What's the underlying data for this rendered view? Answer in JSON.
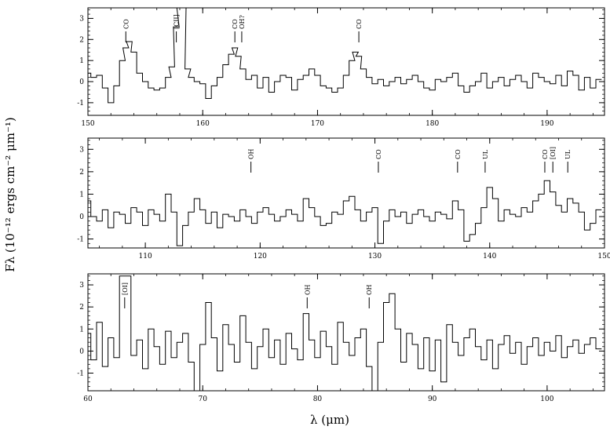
{
  "y_axis_label": "Fλ (10⁻¹² ergs cm⁻² μm⁻¹)",
  "x_axis_label": "λ (μm)",
  "chart_data": [
    {
      "type": "line",
      "step": true,
      "x_range": [
        150,
        195
      ],
      "y_range": [
        -1.6,
        3.5
      ],
      "x_ticks": [
        150,
        160,
        170,
        180,
        190
      ],
      "y_ticks": [
        -1,
        0,
        1,
        2,
        3
      ],
      "lines": [
        {
          "x": 153.3,
          "label": "CO"
        },
        {
          "x": 157.7,
          "label": "[CII]"
        },
        {
          "x": 162.8,
          "label": "CO"
        },
        {
          "x": 163.4,
          "label": "OH?"
        },
        {
          "x": 173.6,
          "label": "CO"
        }
      ],
      "x": [
        150,
        150.5,
        151,
        151.5,
        152,
        152.5,
        153,
        153.3,
        153.6,
        154,
        154.5,
        155,
        155.5,
        156,
        156.5,
        157,
        157.3,
        157.7,
        158,
        158.3,
        158.7,
        159,
        159.5,
        160,
        160.5,
        161,
        161.5,
        162,
        162.5,
        162.8,
        163.1,
        163.5,
        164,
        164.5,
        165,
        165.5,
        166,
        166.5,
        167,
        167.5,
        168,
        168.5,
        169,
        169.5,
        170,
        170.5,
        171,
        171.5,
        172,
        172.5,
        173,
        173.3,
        173.6,
        174,
        174.5,
        175,
        175.5,
        176,
        176.5,
        177,
        177.5,
        178,
        178.5,
        179,
        179.5,
        180,
        180.5,
        181,
        181.5,
        182,
        182.5,
        183,
        183.5,
        184,
        184.5,
        185,
        185.5,
        186,
        186.5,
        187,
        187.5,
        188,
        188.5,
        189,
        189.5,
        190,
        190.5,
        191,
        191.5,
        192,
        192.5,
        193,
        193.5,
        194,
        194.5
      ],
      "values": [
        0.4,
        0.2,
        0.3,
        -0.3,
        -1.0,
        -0.2,
        1.0,
        1.6,
        1.9,
        1.4,
        0.4,
        0.0,
        -0.3,
        -0.4,
        -0.3,
        0.2,
        0.7,
        2.6,
        3.5,
        3.5,
        0.6,
        0.2,
        0.0,
        -0.1,
        -0.8,
        -0.2,
        0.2,
        0.8,
        1.3,
        1.6,
        1.2,
        0.6,
        0.1,
        0.3,
        -0.3,
        0.2,
        -0.5,
        0.0,
        0.3,
        0.2,
        -0.4,
        0.1,
        0.3,
        0.6,
        0.3,
        -0.2,
        -0.3,
        -0.5,
        -0.3,
        0.3,
        1.0,
        1.4,
        1.2,
        0.6,
        0.2,
        -0.1,
        0.1,
        -0.2,
        0.0,
        0.2,
        -0.1,
        0.1,
        0.3,
        0.0,
        -0.3,
        -0.4,
        0.1,
        0.0,
        0.2,
        0.4,
        -0.2,
        -0.5,
        -0.2,
        0.0,
        0.4,
        -0.3,
        0.0,
        0.2,
        -0.2,
        0.1,
        0.3,
        0.0,
        -0.3,
        0.4,
        0.2,
        0.0,
        -0.1,
        0.3,
        -0.2,
        0.5,
        0.3,
        -0.4,
        0.2,
        -0.3,
        0.1
      ]
    },
    {
      "type": "line",
      "step": true,
      "x_range": [
        105,
        150
      ],
      "y_range": [
        -1.4,
        3.5
      ],
      "x_ticks": [
        110,
        120,
        130,
        140,
        150
      ],
      "y_ticks": [
        -1,
        0,
        1,
        2,
        3
      ],
      "lines": [
        {
          "x": 119.2,
          "label": "OH"
        },
        {
          "x": 130.3,
          "label": "CO"
        },
        {
          "x": 137.2,
          "label": "CO"
        },
        {
          "x": 139.6,
          "label": "UL"
        },
        {
          "x": 144.8,
          "label": "CO"
        },
        {
          "x": 145.5,
          "label": "[OI]"
        },
        {
          "x": 146.8,
          "label": "UL"
        }
      ],
      "x": [
        105,
        105.5,
        106,
        106.5,
        107,
        107.5,
        108,
        108.5,
        109,
        109.5,
        110,
        110.5,
        111,
        111.5,
        112,
        112.5,
        113,
        113.5,
        114,
        114.5,
        115,
        115.5,
        116,
        116.5,
        117,
        117.5,
        118,
        118.5,
        119,
        119.5,
        120,
        120.5,
        121,
        121.5,
        122,
        122.5,
        123,
        123.5,
        124,
        124.5,
        125,
        125.5,
        126,
        126.5,
        127,
        127.5,
        128,
        128.5,
        129,
        129.5,
        130,
        130.5,
        131,
        131.5,
        132,
        132.5,
        133,
        133.5,
        134,
        134.5,
        135,
        135.5,
        136,
        136.5,
        137,
        137.5,
        138,
        138.5,
        139,
        139.5,
        140,
        140.5,
        141,
        141.5,
        142,
        142.5,
        143,
        143.5,
        144,
        144.5,
        145,
        145.5,
        146,
        146.5,
        147,
        147.5,
        148,
        148.5,
        149,
        149.5
      ],
      "values": [
        0.7,
        0.0,
        -0.2,
        0.3,
        -0.5,
        0.2,
        0.1,
        -0.3,
        0.4,
        0.2,
        -0.4,
        0.3,
        0.1,
        -0.2,
        1.0,
        0.2,
        -1.3,
        -0.4,
        0.2,
        0.8,
        0.3,
        -0.3,
        0.2,
        -0.5,
        0.1,
        0.0,
        -0.2,
        0.3,
        0.0,
        -0.3,
        0.2,
        0.4,
        0.1,
        -0.2,
        0.0,
        0.3,
        0.1,
        -0.2,
        0.8,
        0.4,
        0.0,
        -0.4,
        -0.3,
        0.2,
        0.1,
        0.7,
        0.9,
        0.3,
        -0.2,
        0.2,
        0.4,
        -1.2,
        -0.2,
        0.3,
        0.0,
        0.2,
        -0.3,
        0.1,
        0.3,
        0.0,
        -0.2,
        0.2,
        0.1,
        -0.1,
        0.7,
        0.3,
        -1.1,
        -0.8,
        -0.3,
        0.4,
        1.3,
        0.8,
        -0.2,
        0.3,
        0.1,
        0.0,
        0.4,
        0.2,
        0.7,
        1.0,
        1.6,
        1.1,
        0.5,
        0.2,
        0.8,
        0.6,
        0.2,
        -0.6,
        -0.3,
        0.3
      ]
    },
    {
      "type": "line",
      "step": true,
      "x_range": [
        60,
        105
      ],
      "y_range": [
        -1.8,
        3.5
      ],
      "x_ticks": [
        60,
        70,
        80,
        90,
        100
      ],
      "y_ticks": [
        -1,
        0,
        1,
        2,
        3
      ],
      "lines": [
        {
          "x": 63.2,
          "label": "[OI]"
        },
        {
          "x": 79.1,
          "label": "OH"
        },
        {
          "x": 84.5,
          "label": "OH"
        }
      ],
      "x": [
        60,
        60.5,
        61,
        61.5,
        62,
        62.5,
        63,
        63.5,
        64,
        64.5,
        65,
        65.5,
        66,
        66.5,
        67,
        67.5,
        68,
        68.5,
        69,
        69.5,
        70,
        70.5,
        71,
        71.5,
        72,
        72.5,
        73,
        73.5,
        74,
        74.5,
        75,
        75.5,
        76,
        76.5,
        77,
        77.5,
        78,
        78.5,
        79,
        79.5,
        80,
        80.5,
        81,
        81.5,
        82,
        82.5,
        83,
        83.5,
        84,
        84.5,
        85,
        85.5,
        86,
        86.5,
        87,
        87.5,
        88,
        88.5,
        89,
        89.5,
        90,
        90.5,
        91,
        91.5,
        92,
        92.5,
        93,
        93.5,
        94,
        94.5,
        95,
        95.5,
        96,
        96.5,
        97,
        97.5,
        98,
        98.5,
        99,
        99.5,
        100,
        100.5,
        101,
        101.5,
        102,
        102.5,
        103,
        103.5,
        104,
        104.5
      ],
      "values": [
        0.8,
        -0.4,
        1.3,
        -0.7,
        0.6,
        -0.3,
        3.4,
        3.4,
        -0.2,
        0.5,
        -0.8,
        1.0,
        0.2,
        -0.6,
        0.9,
        -0.3,
        0.4,
        0.8,
        -0.5,
        -1.8,
        0.3,
        2.2,
        0.6,
        -0.9,
        1.2,
        0.3,
        -0.5,
        1.6,
        0.4,
        -0.8,
        0.2,
        1.0,
        -0.3,
        0.5,
        -0.6,
        0.8,
        0.1,
        -0.4,
        1.7,
        0.5,
        -0.3,
        0.9,
        0.2,
        -0.6,
        1.3,
        0.4,
        -0.2,
        0.6,
        1.0,
        -0.7,
        -1.8,
        0.4,
        2.2,
        2.6,
        1.0,
        -0.5,
        0.8,
        0.3,
        -0.8,
        0.6,
        -0.9,
        0.5,
        -1.4,
        1.2,
        0.4,
        -0.2,
        0.6,
        1.0,
        0.2,
        -0.4,
        0.5,
        -0.8,
        0.3,
        0.7,
        -0.1,
        0.4,
        -0.6,
        0.2,
        0.6,
        -0.2,
        0.4,
        0.0,
        0.7,
        -0.3,
        0.2,
        0.5,
        -0.1,
        0.3,
        0.6,
        0.1
      ]
    }
  ]
}
